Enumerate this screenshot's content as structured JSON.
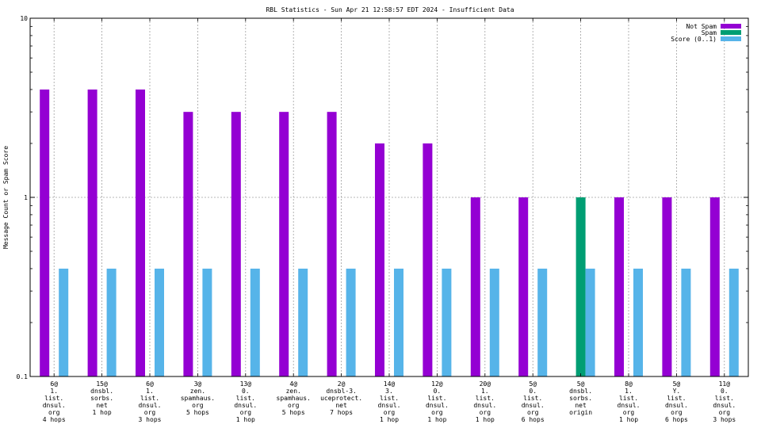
{
  "chart_data": {
    "type": "bar",
    "title": "RBL Statistics - Sun Apr 21 12:58:57 EDT 2024 - Insufficient Data",
    "ylabel": "Message Count or Spam Score",
    "xlabel": "",
    "yscale": "log",
    "ylim": [
      0.1,
      10
    ],
    "yticks": [
      {
        "value": 0.1,
        "label": "0.1"
      },
      {
        "value": 1,
        "label": "1"
      },
      {
        "value": 10,
        "label": "10"
      }
    ],
    "grid": true,
    "legend_position": "top-right",
    "categories": [
      [
        "6@",
        "1.",
        "list.",
        "dnsul.",
        "org",
        "4 hops"
      ],
      [
        "15@",
        "dnsbl.",
        "sorbs.",
        "net",
        "1 hop"
      ],
      [
        "6@",
        "1.",
        "list.",
        "dnsul.",
        "org",
        "3 hops"
      ],
      [
        "3@",
        "zen.",
        "spamhaus.",
        "org",
        "5 hops"
      ],
      [
        "13@",
        "0.",
        "list.",
        "dnsul.",
        "org",
        "1 hop"
      ],
      [
        "4@",
        "zen.",
        "spamhaus.",
        "org",
        "5 hops"
      ],
      [
        "2@",
        "dnsbl-3.",
        "uceprotect.",
        "net",
        "7 hops"
      ],
      [
        "14@",
        "3.",
        "list.",
        "dnsul.",
        "org",
        "1 hop"
      ],
      [
        "12@",
        "0.",
        "list.",
        "dnsul.",
        "org",
        "1 hop"
      ],
      [
        "20@",
        "1.",
        "list.",
        "dnsul.",
        "org",
        "1 hop"
      ],
      [
        "5@",
        "0.",
        "list.",
        "dnsul.",
        "org",
        "6 hops"
      ],
      [
        "5@",
        "dnsbl.",
        "sorbs.",
        "net",
        "origin"
      ],
      [
        "8@",
        "1.",
        "list.",
        "dnsul.",
        "org",
        "1 hop"
      ],
      [
        "5@",
        "Y.",
        "list.",
        "dnsul.",
        "org",
        "6 hops"
      ],
      [
        "11@",
        "0.",
        "list.",
        "dnsul.",
        "org",
        "3 hops"
      ]
    ],
    "series": [
      {
        "name": "Not Spam",
        "color": "#9400d3",
        "values": [
          4,
          4,
          4,
          3,
          3,
          3,
          3,
          2,
          2,
          1,
          1,
          null,
          1,
          1,
          1
        ]
      },
      {
        "name": "Spam",
        "color": "#009e73",
        "values": [
          null,
          null,
          null,
          null,
          null,
          null,
          null,
          null,
          null,
          null,
          null,
          1,
          null,
          null,
          null
        ]
      },
      {
        "name": "Score (0..1)",
        "color": "#56b4e9",
        "values": [
          0.4,
          0.4,
          0.4,
          0.4,
          0.4,
          0.4,
          0.4,
          0.4,
          0.4,
          0.4,
          0.4,
          0.4,
          0.4,
          0.4,
          0.4
        ]
      }
    ]
  }
}
